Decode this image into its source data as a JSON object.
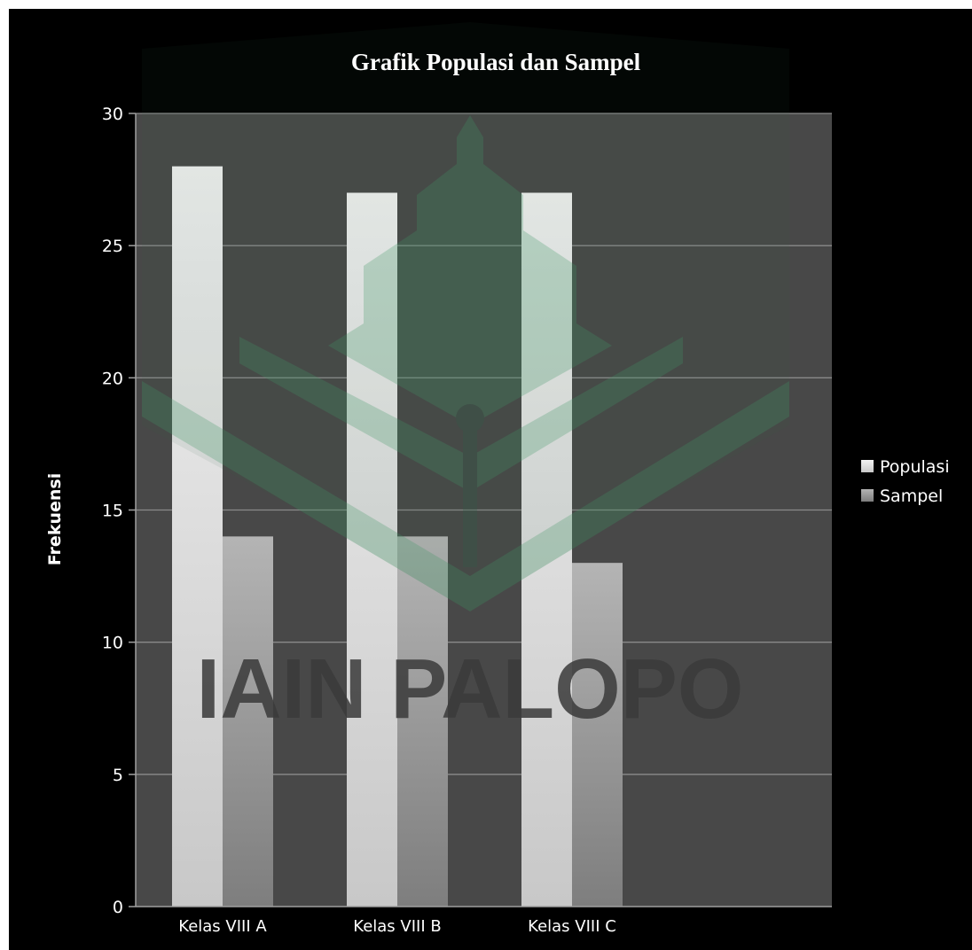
{
  "chart_data": {
    "type": "bar",
    "title": "Grafik Populasi dan Sampel",
    "xlabel": "",
    "ylabel": "Frekuensi",
    "categories": [
      "Kelas VIII A",
      "Kelas VIII B",
      "Kelas VIII C"
    ],
    "series": [
      {
        "name": "Populasi",
        "values": [
          28,
          27,
          27
        ]
      },
      {
        "name": "Sampel",
        "values": [
          14,
          14,
          13
        ]
      }
    ],
    "ylim": [
      0,
      30
    ],
    "yticks": [
      "0",
      "5",
      "10",
      "15",
      "20",
      "25",
      "30"
    ],
    "grid": true,
    "legend_position": "right",
    "colors": {
      "background": "#000000",
      "plot_area": "#484848",
      "gridline": "#8a8a8a",
      "populasi": "#e6e6e6",
      "sampel": "#a6a6a6"
    }
  },
  "watermark": {
    "text": "IAIN PALOPO",
    "icon": "iain-palopo-logo-icon",
    "color": "#2f5f45"
  }
}
